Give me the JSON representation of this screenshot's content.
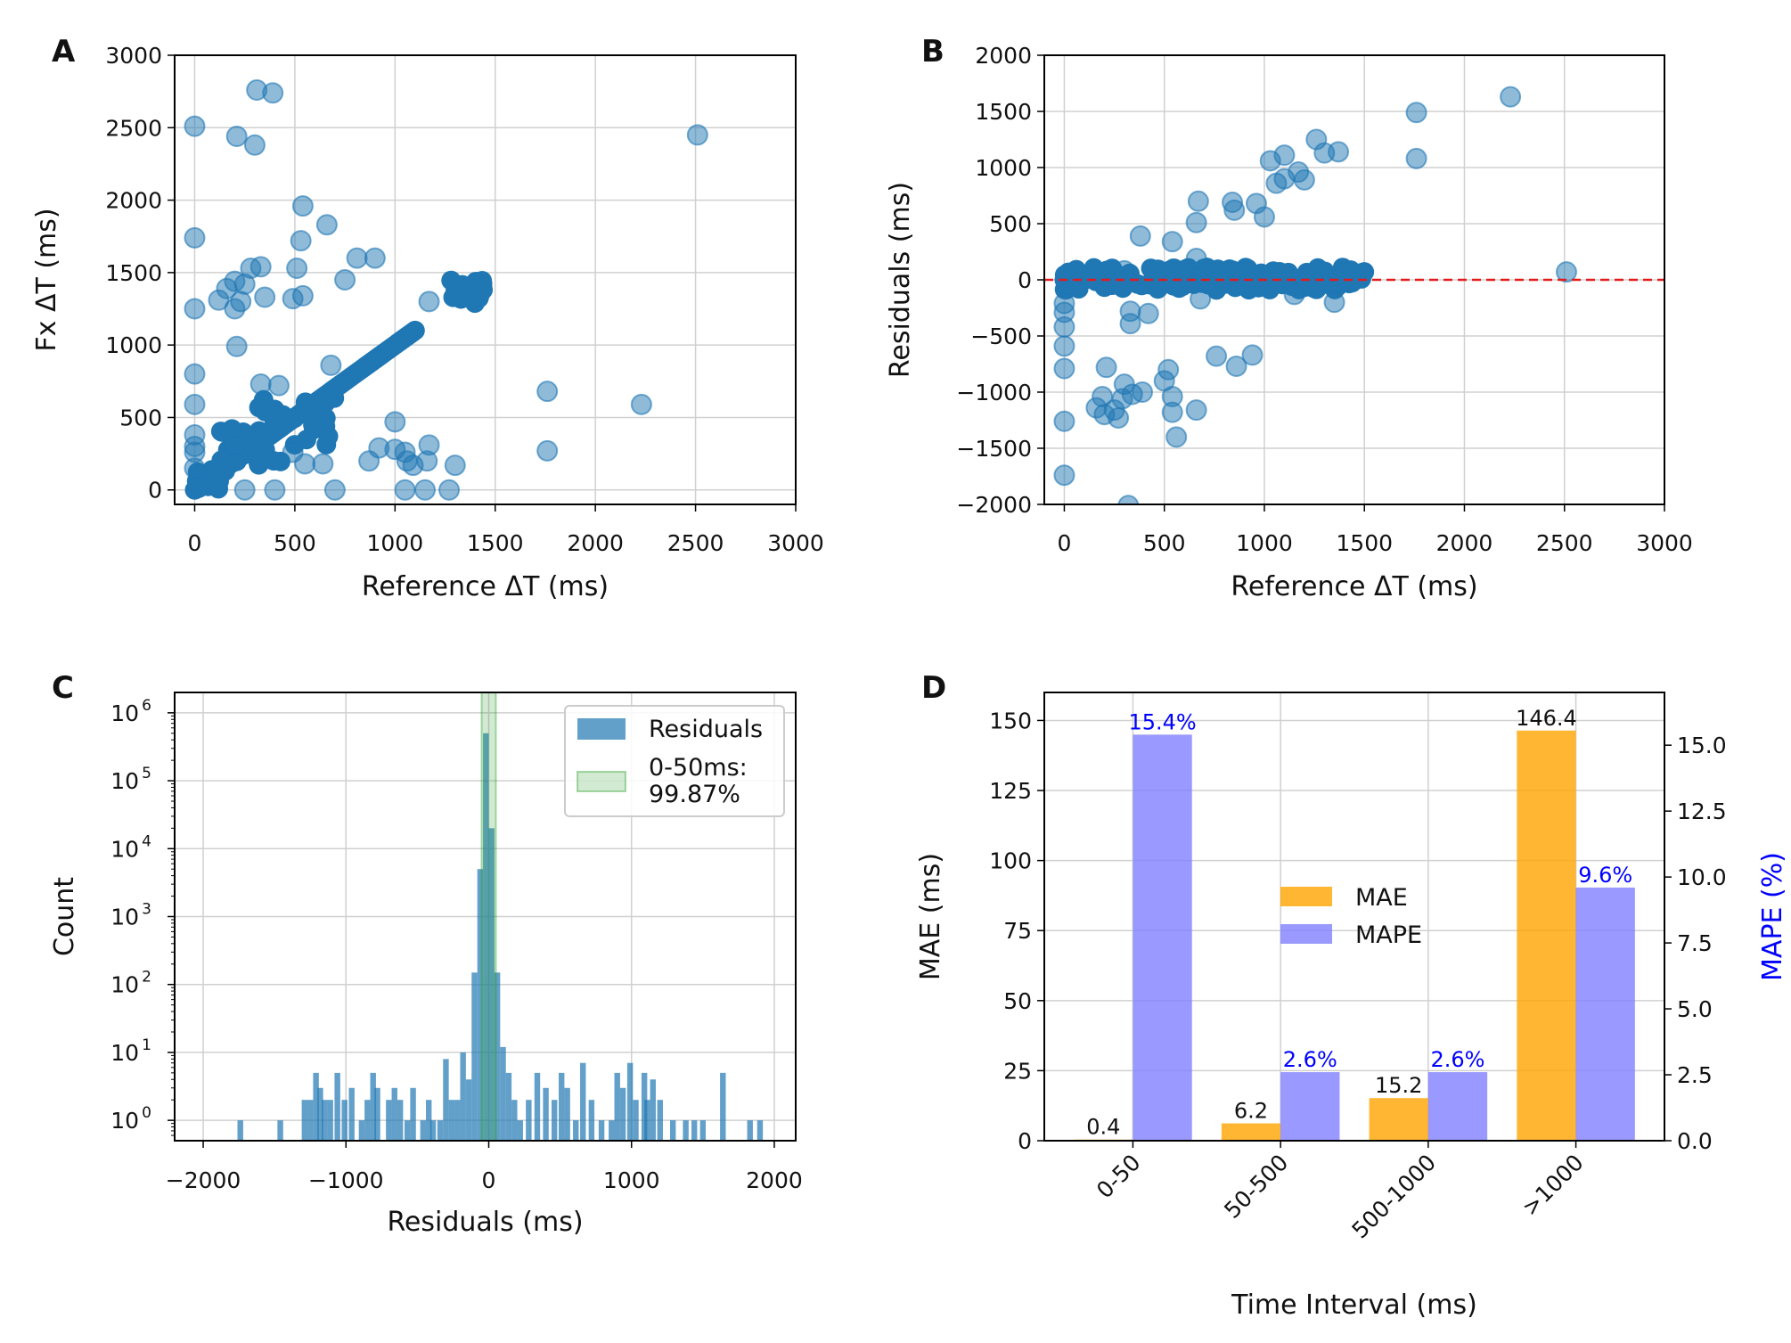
{
  "colors": {
    "blue": "#1f77b4",
    "orange": "#ffa500",
    "purple": "#8080ff",
    "green": "#2ca02c",
    "red": "#e41a1c",
    "mape_label": "#0000ff"
  },
  "chart_data": [
    {
      "panel": "A",
      "type": "scatter",
      "xlabel_text": "Reference ΔT (ms)",
      "ylabel_text": "Fx ΔT (ms)",
      "xticks": [
        "0",
        "500",
        "1000",
        "1500",
        "2000",
        "2500",
        "3000"
      ],
      "yticks": [
        "0",
        "500",
        "1000",
        "1500",
        "2000",
        "2500",
        "3000"
      ],
      "xlim": [
        -100,
        3000
      ],
      "ylim": [
        -100,
        3000
      ],
      "grid": true,
      "diagonal_segment": [
        [
          0,
          0
        ],
        [
          1100,
          1100
        ]
      ],
      "clusters": [
        {
          "x0": 1280,
          "x1": 1450,
          "y0": 1280,
          "y1": 1460
        },
        {
          "x0": 0,
          "x1": 130,
          "y0": 0,
          "y1": 150
        },
        {
          "x0": 130,
          "x1": 430,
          "y0": 130,
          "y1": 430
        },
        {
          "x0": 300,
          "x1": 700,
          "y0": 300,
          "y1": 650
        }
      ],
      "points": [
        [
          0,
          2510
        ],
        [
          210,
          2440
        ],
        [
          300,
          2380
        ],
        [
          310,
          2760
        ],
        [
          390,
          2740
        ],
        [
          0,
          1740
        ],
        [
          540,
          1960
        ],
        [
          660,
          1830
        ],
        [
          530,
          1720
        ],
        [
          280,
          1530
        ],
        [
          330,
          1540
        ],
        [
          510,
          1530
        ],
        [
          750,
          1450
        ],
        [
          810,
          1600
        ],
        [
          900,
          1600
        ],
        [
          160,
          1390
        ],
        [
          200,
          1440
        ],
        [
          250,
          1420
        ],
        [
          120,
          1310
        ],
        [
          200,
          1250
        ],
        [
          230,
          1300
        ],
        [
          350,
          1330
        ],
        [
          490,
          1320
        ],
        [
          540,
          1340
        ],
        [
          0,
          1250
        ],
        [
          210,
          990
        ],
        [
          1170,
          1300
        ],
        [
          0,
          800
        ],
        [
          0,
          590
        ],
        [
          330,
          730
        ],
        [
          420,
          720
        ],
        [
          680,
          860
        ],
        [
          0,
          380
        ],
        [
          0,
          300
        ],
        [
          0,
          260
        ],
        [
          0,
          150
        ],
        [
          250,
          0
        ],
        [
          400,
          0
        ],
        [
          700,
          0
        ],
        [
          1050,
          0
        ],
        [
          1150,
          0
        ],
        [
          1270,
          0
        ],
        [
          200,
          300
        ],
        [
          490,
          260
        ],
        [
          550,
          180
        ],
        [
          640,
          180
        ],
        [
          870,
          200
        ],
        [
          920,
          290
        ],
        [
          1000,
          280
        ],
        [
          1000,
          470
        ],
        [
          1050,
          260
        ],
        [
          1060,
          200
        ],
        [
          1090,
          170
        ],
        [
          1160,
          200
        ],
        [
          1170,
          310
        ],
        [
          1300,
          170
        ],
        [
          1760,
          680
        ],
        [
          1760,
          270
        ],
        [
          2230,
          590
        ],
        [
          2510,
          2450
        ]
      ]
    },
    {
      "panel": "B",
      "type": "scatter",
      "xlabel_text": "Reference ΔT (ms)",
      "ylabel_text": "Residuals (ms)",
      "xticks": [
        "0",
        "500",
        "1000",
        "1500",
        "2000",
        "2500",
        "3000"
      ],
      "yticks": [
        "−2000",
        "−1500",
        "−1000",
        "−500",
        "0",
        "500",
        "1000",
        "1500",
        "2000"
      ],
      "xlim": [
        -100,
        3000
      ],
      "ylim": [
        -2000,
        2000
      ],
      "grid": true,
      "zero_line": 0,
      "zero_band": {
        "x0": 0,
        "x1": 1500,
        "y0": -90,
        "y1": 110
      },
      "points": [
        [
          1760,
          1490
        ],
        [
          2230,
          1630
        ],
        [
          1760,
          1080
        ],
        [
          1260,
          1250
        ],
        [
          1300,
          1130
        ],
        [
          1170,
          960
        ],
        [
          1030,
          1060
        ],
        [
          1100,
          900
        ],
        [
          1060,
          860
        ],
        [
          1100,
          1110
        ],
        [
          1370,
          1140
        ],
        [
          1200,
          890
        ],
        [
          840,
          690
        ],
        [
          850,
          620
        ],
        [
          960,
          680
        ],
        [
          1000,
          560
        ],
        [
          670,
          700
        ],
        [
          660,
          510
        ],
        [
          380,
          390
        ],
        [
          540,
          340
        ],
        [
          660,
          190
        ],
        [
          300,
          80
        ],
        [
          2510,
          70
        ],
        [
          0,
          -210
        ],
        [
          0,
          -290
        ],
        [
          0,
          -420
        ],
        [
          0,
          -590
        ],
        [
          0,
          -790
        ],
        [
          0,
          -1260
        ],
        [
          0,
          -1740
        ],
        [
          330,
          -280
        ],
        [
          330,
          -390
        ],
        [
          420,
          -300
        ],
        [
          680,
          -170
        ],
        [
          1150,
          -130
        ],
        [
          1350,
          -200
        ],
        [
          500,
          -900
        ],
        [
          520,
          -800
        ],
        [
          540,
          -1040
        ],
        [
          540,
          -1180
        ],
        [
          560,
          -1400
        ],
        [
          300,
          -930
        ],
        [
          390,
          -1000
        ],
        [
          340,
          -1020
        ],
        [
          660,
          -1160
        ],
        [
          760,
          -680
        ],
        [
          860,
          -770
        ],
        [
          940,
          -670
        ],
        [
          210,
          -780
        ],
        [
          190,
          -1040
        ],
        [
          160,
          -1140
        ],
        [
          200,
          -1200
        ],
        [
          250,
          -1160
        ],
        [
          270,
          -1230
        ],
        [
          290,
          -1060
        ],
        [
          320,
          -2010
        ]
      ]
    },
    {
      "panel": "C",
      "type": "bar",
      "xlabel_text": "Residuals (ms)",
      "ylabel_text": "Count",
      "xticks": [
        "−2000",
        "−1000",
        "0",
        "1000",
        "2000"
      ],
      "yticks": [
        "10",
        "10",
        "10",
        "10",
        "10",
        "10",
        "10"
      ],
      "ytick_exponents": [
        "0",
        "1",
        "2",
        "3",
        "4",
        "5",
        "6"
      ],
      "yscale": "log",
      "xlim": [
        -2200,
        2150
      ],
      "ylim_log10": [
        -0.3,
        6.3
      ],
      "bin_width": 40,
      "bins": [
        [
          -1740,
          1
        ],
        [
          -1460,
          1
        ],
        [
          -1290,
          2
        ],
        [
          -1250,
          2
        ],
        [
          -1210,
          5
        ],
        [
          -1180,
          3
        ],
        [
          -1150,
          2
        ],
        [
          -1110,
          2
        ],
        [
          -1060,
          5
        ],
        [
          -1010,
          2
        ],
        [
          -960,
          3
        ],
        [
          -890,
          1
        ],
        [
          -850,
          2
        ],
        [
          -810,
          5
        ],
        [
          -780,
          3
        ],
        [
          -700,
          2
        ],
        [
          -660,
          3
        ],
        [
          -620,
          2
        ],
        [
          -570,
          1
        ],
        [
          -530,
          3
        ],
        [
          -460,
          1
        ],
        [
          -420,
          2
        ],
        [
          -390,
          1
        ],
        [
          -340,
          1
        ],
        [
          -300,
          8
        ],
        [
          -260,
          2
        ],
        [
          -220,
          2
        ],
        [
          -180,
          10
        ],
        [
          -140,
          4
        ],
        [
          -100,
          150
        ],
        [
          -60,
          5000
        ],
        [
          -20,
          500000
        ],
        [
          20,
          20000
        ],
        [
          60,
          150
        ],
        [
          100,
          12
        ],
        [
          140,
          5
        ],
        [
          180,
          2
        ],
        [
          220,
          1
        ],
        [
          280,
          2
        ],
        [
          340,
          5
        ],
        [
          400,
          3
        ],
        [
          460,
          2
        ],
        [
          510,
          5
        ],
        [
          550,
          3
        ],
        [
          610,
          1
        ],
        [
          660,
          7
        ],
        [
          720,
          2
        ],
        [
          790,
          1
        ],
        [
          860,
          1
        ],
        [
          900,
          5
        ],
        [
          940,
          3
        ],
        [
          990,
          7
        ],
        [
          1030,
          2
        ],
        [
          1090,
          5
        ],
        [
          1110,
          2
        ],
        [
          1150,
          4
        ],
        [
          1200,
          2
        ],
        [
          1290,
          1
        ],
        [
          1380,
          1
        ],
        [
          1440,
          1
        ],
        [
          1500,
          1
        ],
        [
          1640,
          5
        ],
        [
          1830,
          1
        ],
        [
          1900,
          1
        ]
      ],
      "green_span": [
        -50,
        50
      ],
      "legend": [
        "Residuals",
        "0-50ms:",
        "99.87%"
      ]
    },
    {
      "panel": "D",
      "type": "bar",
      "xlabel_text": "Time Interval (ms)",
      "ylabel_text": "MAE (ms)",
      "ylabel2_text": "MAPE (%)",
      "categories": [
        "0-50",
        "50-500",
        "500-1000",
        ">1000"
      ],
      "yticks": [
        "0",
        "25",
        "50",
        "75",
        "100",
        "125",
        "150"
      ],
      "y2ticks": [
        "0.0",
        "2.5",
        "5.0",
        "7.5",
        "10.0",
        "12.5",
        "15.0"
      ],
      "ylim": [
        0,
        160
      ],
      "y2lim": [
        0,
        17
      ],
      "series": [
        {
          "name": "MAE",
          "values": [
            0.4,
            6.2,
            15.2,
            146.4
          ],
          "labels": [
            "0.4",
            "6.2",
            "15.2",
            "146.4"
          ]
        },
        {
          "name": "MAPE",
          "values": [
            15.4,
            2.6,
            2.6,
            9.6
          ],
          "labels": [
            "15.4%",
            "2.6%",
            "2.6%",
            "9.6%"
          ]
        }
      ],
      "legend": [
        "MAE",
        "MAPE"
      ]
    }
  ]
}
